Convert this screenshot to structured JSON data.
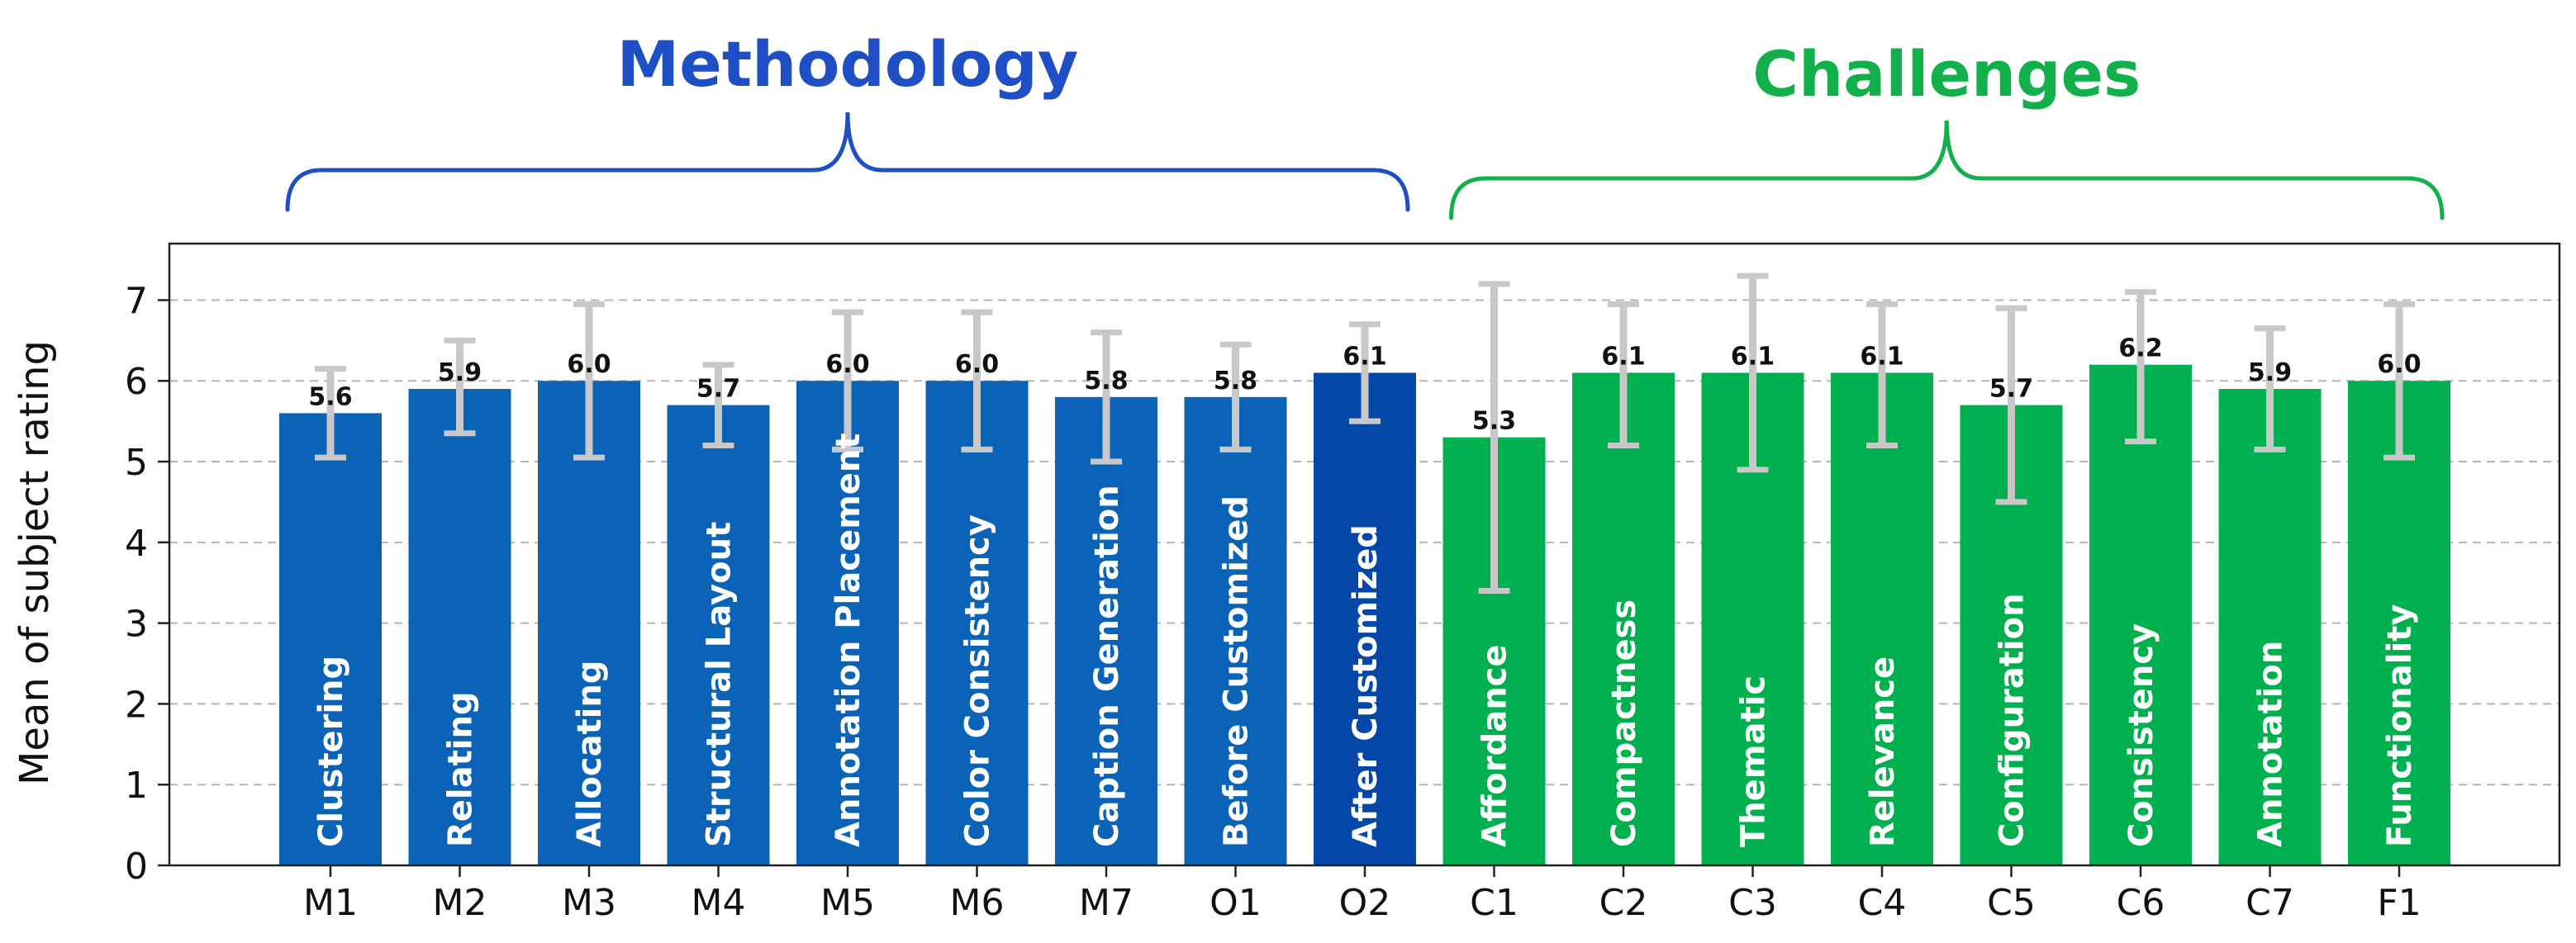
{
  "chart_data": {
    "type": "bar",
    "title": "",
    "xlabel": "",
    "ylabel": "Mean of subject rating",
    "ylim": [
      0,
      7.7
    ],
    "yticks": [
      0,
      1,
      2,
      3,
      4,
      5,
      6,
      7
    ],
    "grid": "horizontal-dashed",
    "groups": [
      {
        "label": "Methodology",
        "color": "#1f4fc4",
        "from": "M1",
        "to": "O2"
      },
      {
        "label": "Challenges",
        "color": "#12b04b",
        "from": "C1",
        "to": "F1"
      }
    ],
    "categories": [
      "M1",
      "M2",
      "M3",
      "M4",
      "M5",
      "M6",
      "M7",
      "O1",
      "O2",
      "C1",
      "C2",
      "C3",
      "C4",
      "C5",
      "C6",
      "C7",
      "F1"
    ],
    "bar_labels": [
      "Clustering",
      "Relating",
      "Allocating",
      "Structural Layout",
      "Annotation Placement",
      "Color Consistency",
      "Caption Generation",
      "Before Customized",
      "After Customized",
      "Affordance",
      "Compactness",
      "Thematic",
      "Relevance",
      "Configuration",
      "Consistency",
      "Annotation",
      "Functionality"
    ],
    "values": [
      5.6,
      5.9,
      6.0,
      5.7,
      6.0,
      6.0,
      5.8,
      5.8,
      6.1,
      5.3,
      6.1,
      6.1,
      6.1,
      5.7,
      6.2,
      5.9,
      6.0
    ],
    "value_labels": [
      "5.6",
      "5.9",
      "6.0",
      "5.7",
      "6.0",
      "6.0",
      "5.8",
      "5.8",
      "6.1",
      "5.3",
      "6.1",
      "6.1",
      "6.1",
      "5.7",
      "6.2",
      "5.9",
      "6.0"
    ],
    "error_low": [
      5.05,
      5.35,
      5.05,
      5.2,
      5.15,
      5.15,
      5.0,
      5.15,
      5.5,
      3.4,
      5.2,
      4.9,
      5.2,
      4.5,
      5.25,
      5.15,
      5.05
    ],
    "error_high": [
      6.15,
      6.5,
      6.95,
      6.2,
      6.85,
      6.85,
      6.6,
      6.45,
      6.7,
      7.2,
      6.95,
      7.3,
      6.95,
      6.9,
      7.1,
      6.65,
      6.95
    ],
    "bar_colors": [
      "#0a63b7",
      "#0a63b7",
      "#0a63b7",
      "#0a63b7",
      "#0a63b7",
      "#0a63b7",
      "#0a63b7",
      "#0a63b7",
      "#0447a8",
      "#00b04f",
      "#00b04f",
      "#00b04f",
      "#00b04f",
      "#00b04f",
      "#00b04f",
      "#00b04f",
      "#00b04f"
    ],
    "error_color": "#c8c8c8"
  }
}
